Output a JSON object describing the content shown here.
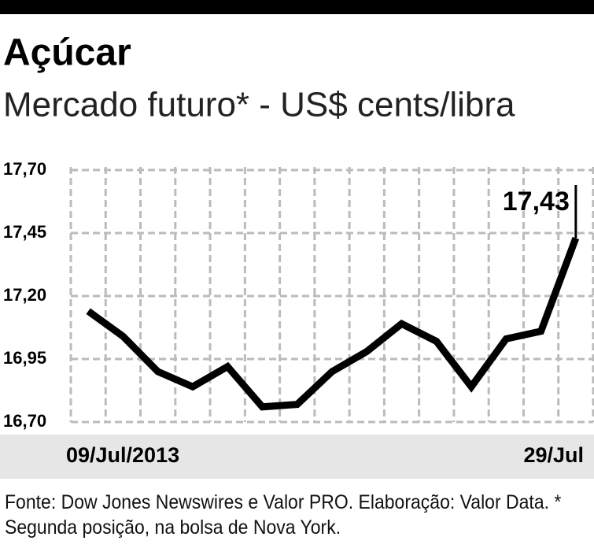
{
  "chart_data": {
    "type": "line",
    "title": "Açúcar",
    "subtitle": "Mercado futuro* - US$ cents/libra",
    "categories": [
      "09/Jul/2013",
      null,
      null,
      null,
      null,
      null,
      null,
      null,
      null,
      null,
      null,
      null,
      null,
      null,
      "29/Jul"
    ],
    "values": [
      17.14,
      17.04,
      16.9,
      16.84,
      16.92,
      16.76,
      16.77,
      16.9,
      16.98,
      17.09,
      17.02,
      16.84,
      17.03,
      17.06,
      17.43
    ],
    "value_labels": [
      null,
      null,
      null,
      null,
      null,
      null,
      null,
      null,
      null,
      null,
      null,
      null,
      null,
      null,
      "17,43"
    ],
    "color": "#000000",
    "ylim": [
      16.7,
      17.7
    ],
    "yticks": [
      {
        "value": 16.7,
        "label": "16,70"
      },
      {
        "value": 16.95,
        "label": "16,95"
      },
      {
        "value": 17.2,
        "label": "17,20"
      },
      {
        "value": 17.45,
        "label": "17,45"
      },
      {
        "value": 17.7,
        "label": "17,70"
      }
    ],
    "grid": true,
    "source": "Fonte: Dow Jones Newswires e Valor PRO. Elaboração: Valor Data. * Segunda posição, na bolsa de Nova York."
  }
}
